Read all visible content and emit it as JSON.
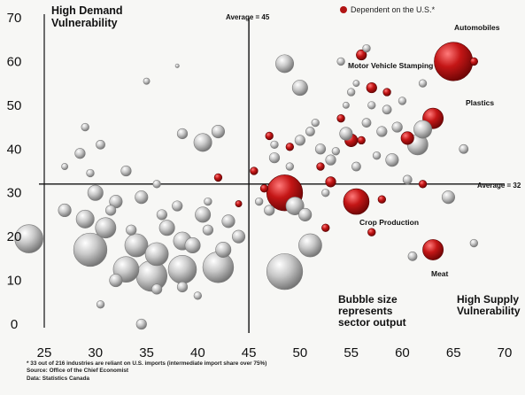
{
  "chart_data": {
    "type": "scatter",
    "subtype": "bubble",
    "xlim": [
      25,
      70
    ],
    "ylim": [
      0,
      70
    ],
    "x_ticks": [
      25,
      30,
      35,
      40,
      45,
      50,
      55,
      60,
      65,
      70
    ],
    "y_ticks": [
      0,
      10,
      20,
      30,
      40,
      50,
      60,
      70
    ],
    "reference_lines": {
      "vertical": {
        "value": 45,
        "label": "Average = 45"
      },
      "horizontal": {
        "value": 32,
        "label": "Average = 32"
      }
    },
    "quadrant_labels": {
      "top_left": "High Demand Vulnerability",
      "bottom_right": "High Supply Vulnerability",
      "bubble_note": "Bubble size represents sector output"
    },
    "legend": {
      "label": "Dependent on the U.S.*",
      "color": "#b11414"
    },
    "colors": {
      "default": "#c4c4c4",
      "dependent": "#b11414",
      "axis": "#111111"
    },
    "labeled_points": [
      {
        "label": "Automobiles",
        "x": 65,
        "y": 60,
        "size": 15,
        "dependent_on_us": true
      },
      {
        "label": "Motor Vehicle Stamping",
        "x": 56,
        "y": 61.5,
        "size": 4,
        "dependent_on_us": true
      },
      {
        "label": "Plastics",
        "x": 63,
        "y": 47,
        "size": 8,
        "dependent_on_us": true
      },
      {
        "label": "Crop Production",
        "x": 55.5,
        "y": 28,
        "size": 10,
        "dependent_on_us": true
      },
      {
        "label": "Meat",
        "x": 63,
        "y": 17,
        "size": 8,
        "dependent_on_us": true
      }
    ],
    "points": [
      {
        "x": 48.5,
        "y": 30,
        "size": 14,
        "dependent_on_us": true
      },
      {
        "x": 53,
        "y": 32.5,
        "size": 4,
        "dependent_on_us": true
      },
      {
        "x": 55,
        "y": 42,
        "size": 5,
        "dependent_on_us": true
      },
      {
        "x": 54,
        "y": 47,
        "size": 3,
        "dependent_on_us": true
      },
      {
        "x": 60.5,
        "y": 42.5,
        "size": 5,
        "dependent_on_us": true
      },
      {
        "x": 57,
        "y": 54,
        "size": 4,
        "dependent_on_us": true
      },
      {
        "x": 47,
        "y": 43,
        "size": 3,
        "dependent_on_us": true
      },
      {
        "x": 45.5,
        "y": 35,
        "size": 3,
        "dependent_on_us": true
      },
      {
        "x": 42,
        "y": 33.5,
        "size": 3,
        "dependent_on_us": true
      },
      {
        "x": 44,
        "y": 27.5,
        "size": 2.5,
        "dependent_on_us": true
      },
      {
        "x": 67,
        "y": 60,
        "size": 3,
        "dependent_on_us": true
      },
      {
        "x": 58,
        "y": 28.5,
        "size": 3,
        "dependent_on_us": true
      },
      {
        "x": 62,
        "y": 32,
        "size": 3,
        "dependent_on_us": true
      },
      {
        "x": 49,
        "y": 40.5,
        "size": 3,
        "dependent_on_us": true
      },
      {
        "x": 52.5,
        "y": 22,
        "size": 3,
        "dependent_on_us": true
      },
      {
        "x": 56,
        "y": 42,
        "size": 3,
        "dependent_on_us": true
      },
      {
        "x": 58.5,
        "y": 53,
        "size": 3,
        "dependent_on_us": true
      },
      {
        "x": 52,
        "y": 36,
        "size": 3,
        "dependent_on_us": true
      },
      {
        "x": 46.5,
        "y": 31,
        "size": 3,
        "dependent_on_us": true
      },
      {
        "x": 57,
        "y": 21,
        "size": 3,
        "dependent_on_us": true
      },
      {
        "x": 23.5,
        "y": 19.5,
        "size": 11,
        "dependent_on_us": false
      },
      {
        "x": 29.5,
        "y": 17,
        "size": 13,
        "dependent_on_us": false
      },
      {
        "x": 33,
        "y": 12.5,
        "size": 10,
        "dependent_on_us": false
      },
      {
        "x": 35.5,
        "y": 11,
        "size": 12,
        "dependent_on_us": false
      },
      {
        "x": 38.5,
        "y": 12.5,
        "size": 11,
        "dependent_on_us": false
      },
      {
        "x": 42,
        "y": 13,
        "size": 12,
        "dependent_on_us": false
      },
      {
        "x": 34,
        "y": 18,
        "size": 9,
        "dependent_on_us": false
      },
      {
        "x": 36,
        "y": 16,
        "size": 9,
        "dependent_on_us": false
      },
      {
        "x": 31,
        "y": 22,
        "size": 8,
        "dependent_on_us": false
      },
      {
        "x": 29,
        "y": 24,
        "size": 7,
        "dependent_on_us": false
      },
      {
        "x": 27,
        "y": 26,
        "size": 5,
        "dependent_on_us": false
      },
      {
        "x": 32,
        "y": 28,
        "size": 5,
        "dependent_on_us": false
      },
      {
        "x": 30,
        "y": 30,
        "size": 6,
        "dependent_on_us": false
      },
      {
        "x": 34.5,
        "y": 29,
        "size": 5,
        "dependent_on_us": false
      },
      {
        "x": 37,
        "y": 22,
        "size": 6,
        "dependent_on_us": false
      },
      {
        "x": 38.5,
        "y": 19,
        "size": 7,
        "dependent_on_us": false
      },
      {
        "x": 40.5,
        "y": 25,
        "size": 6,
        "dependent_on_us": false
      },
      {
        "x": 43,
        "y": 23.5,
        "size": 5,
        "dependent_on_us": false
      },
      {
        "x": 44,
        "y": 20,
        "size": 5,
        "dependent_on_us": false
      },
      {
        "x": 39.5,
        "y": 18,
        "size": 6,
        "dependent_on_us": false
      },
      {
        "x": 32,
        "y": 10,
        "size": 5,
        "dependent_on_us": false
      },
      {
        "x": 38.5,
        "y": 8.5,
        "size": 4,
        "dependent_on_us": false
      },
      {
        "x": 40,
        "y": 6.5,
        "size": 3,
        "dependent_on_us": false
      },
      {
        "x": 36,
        "y": 8,
        "size": 4,
        "dependent_on_us": false
      },
      {
        "x": 30.5,
        "y": 4.5,
        "size": 3,
        "dependent_on_us": false
      },
      {
        "x": 34.5,
        "y": 0,
        "size": 4,
        "dependent_on_us": false
      },
      {
        "x": 28.5,
        "y": 39,
        "size": 4,
        "dependent_on_us": false
      },
      {
        "x": 29.5,
        "y": 34.5,
        "size": 3,
        "dependent_on_us": false
      },
      {
        "x": 27,
        "y": 36,
        "size": 2.5,
        "dependent_on_us": false
      },
      {
        "x": 30.5,
        "y": 41,
        "size": 3.5,
        "dependent_on_us": false
      },
      {
        "x": 29,
        "y": 45,
        "size": 3,
        "dependent_on_us": false
      },
      {
        "x": 33,
        "y": 35,
        "size": 4,
        "dependent_on_us": false
      },
      {
        "x": 35,
        "y": 55.5,
        "size": 2.5,
        "dependent_on_us": false
      },
      {
        "x": 38,
        "y": 59,
        "size": 1.5,
        "dependent_on_us": false
      },
      {
        "x": 40.5,
        "y": 41.5,
        "size": 7,
        "dependent_on_us": false
      },
      {
        "x": 38.5,
        "y": 43.5,
        "size": 4,
        "dependent_on_us": false
      },
      {
        "x": 42,
        "y": 44,
        "size": 5,
        "dependent_on_us": false
      },
      {
        "x": 36,
        "y": 32,
        "size": 3,
        "dependent_on_us": false
      },
      {
        "x": 38,
        "y": 27,
        "size": 4,
        "dependent_on_us": false
      },
      {
        "x": 41,
        "y": 28,
        "size": 3,
        "dependent_on_us": false
      },
      {
        "x": 31.5,
        "y": 26,
        "size": 4,
        "dependent_on_us": false
      },
      {
        "x": 36.5,
        "y": 25,
        "size": 4,
        "dependent_on_us": false
      },
      {
        "x": 33.5,
        "y": 21.5,
        "size": 4,
        "dependent_on_us": false
      },
      {
        "x": 42.5,
        "y": 17,
        "size": 6,
        "dependent_on_us": false
      },
      {
        "x": 41,
        "y": 21.5,
        "size": 4,
        "dependent_on_us": false
      },
      {
        "x": 48.5,
        "y": 12,
        "size": 14,
        "dependent_on_us": false
      },
      {
        "x": 51,
        "y": 18,
        "size": 9,
        "dependent_on_us": false
      },
      {
        "x": 48.5,
        "y": 59.5,
        "size": 7,
        "dependent_on_us": false
      },
      {
        "x": 50,
        "y": 54,
        "size": 6,
        "dependent_on_us": false
      },
      {
        "x": 49.5,
        "y": 27,
        "size": 7,
        "dependent_on_us": false
      },
      {
        "x": 50.5,
        "y": 25,
        "size": 5,
        "dependent_on_us": false
      },
      {
        "x": 47,
        "y": 26,
        "size": 4,
        "dependent_on_us": false
      },
      {
        "x": 52,
        "y": 40,
        "size": 4,
        "dependent_on_us": false
      },
      {
        "x": 51,
        "y": 44,
        "size": 3.5,
        "dependent_on_us": false
      },
      {
        "x": 50,
        "y": 42,
        "size": 4,
        "dependent_on_us": false
      },
      {
        "x": 47.5,
        "y": 38,
        "size": 4,
        "dependent_on_us": false
      },
      {
        "x": 53,
        "y": 37.5,
        "size": 4,
        "dependent_on_us": false
      },
      {
        "x": 54.5,
        "y": 43.5,
        "size": 5,
        "dependent_on_us": false
      },
      {
        "x": 55.5,
        "y": 36,
        "size": 3.5,
        "dependent_on_us": false
      },
      {
        "x": 56.5,
        "y": 46,
        "size": 3.5,
        "dependent_on_us": false
      },
      {
        "x": 57,
        "y": 50,
        "size": 3,
        "dependent_on_us": false
      },
      {
        "x": 58,
        "y": 44,
        "size": 4,
        "dependent_on_us": false
      },
      {
        "x": 59,
        "y": 37.5,
        "size": 5,
        "dependent_on_us": false
      },
      {
        "x": 60.5,
        "y": 33,
        "size": 3.5,
        "dependent_on_us": false
      },
      {
        "x": 61.5,
        "y": 41,
        "size": 8,
        "dependent_on_us": false
      },
      {
        "x": 62,
        "y": 44.5,
        "size": 7,
        "dependent_on_us": false
      },
      {
        "x": 59.5,
        "y": 45,
        "size": 4,
        "dependent_on_us": false
      },
      {
        "x": 58.5,
        "y": 49,
        "size": 3.5,
        "dependent_on_us": false
      },
      {
        "x": 60,
        "y": 51,
        "size": 3,
        "dependent_on_us": false
      },
      {
        "x": 62,
        "y": 55,
        "size": 3,
        "dependent_on_us": false
      },
      {
        "x": 56.5,
        "y": 63,
        "size": 3,
        "dependent_on_us": false
      },
      {
        "x": 55,
        "y": 53,
        "size": 3,
        "dependent_on_us": false
      },
      {
        "x": 54,
        "y": 60,
        "size": 3,
        "dependent_on_us": false
      },
      {
        "x": 53.5,
        "y": 39.5,
        "size": 3,
        "dependent_on_us": false
      },
      {
        "x": 64.5,
        "y": 29,
        "size": 5,
        "dependent_on_us": false
      },
      {
        "x": 66,
        "y": 40,
        "size": 3.5,
        "dependent_on_us": false
      },
      {
        "x": 67,
        "y": 18.5,
        "size": 3,
        "dependent_on_us": false
      },
      {
        "x": 61,
        "y": 15.5,
        "size": 3.5,
        "dependent_on_us": false
      },
      {
        "x": 51.5,
        "y": 46,
        "size": 3,
        "dependent_on_us": false
      },
      {
        "x": 47.5,
        "y": 41,
        "size": 3,
        "dependent_on_us": false
      },
      {
        "x": 46,
        "y": 28,
        "size": 3,
        "dependent_on_us": false
      },
      {
        "x": 54.5,
        "y": 50,
        "size": 2.5,
        "dependent_on_us": false
      },
      {
        "x": 55.5,
        "y": 55,
        "size": 2.5,
        "dependent_on_us": false
      },
      {
        "x": 57.5,
        "y": 38.5,
        "size": 3,
        "dependent_on_us": false
      },
      {
        "x": 49,
        "y": 36,
        "size": 3,
        "dependent_on_us": false
      },
      {
        "x": 52.5,
        "y": 30,
        "size": 3,
        "dependent_on_us": false
      }
    ]
  },
  "footnote": {
    "line1": "* 33 out of 216 industries are reliant on U.S. imports (intermediate import share over 75%)",
    "line2": "Source: Office of the Chief Economist",
    "line3": "Data: Statistics Canada"
  }
}
